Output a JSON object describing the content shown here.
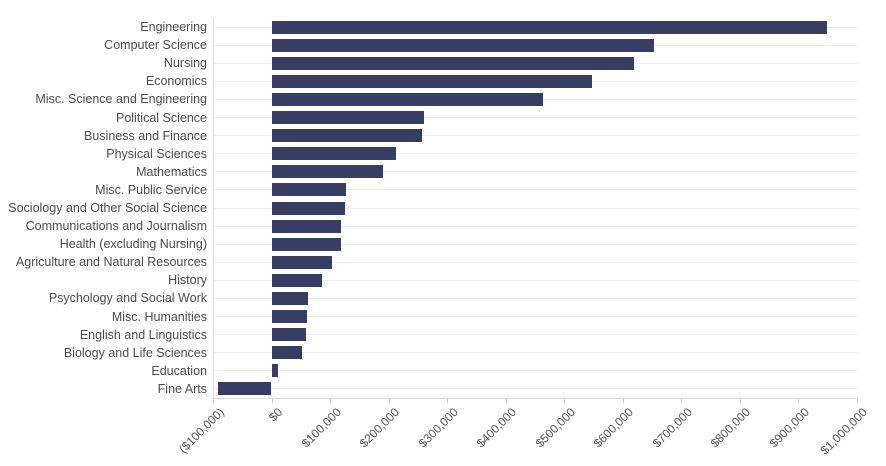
{
  "chart_data": {
    "type": "bar",
    "orientation": "horizontal",
    "title": "",
    "xlabel": "",
    "ylabel": "",
    "xlim": [
      -100000,
      1000000
    ],
    "grid": "horizontal-row-lines",
    "legend": "none",
    "categories": [
      "Engineering",
      "Computer Science",
      "Nursing",
      "Economics",
      "Misc. Science and Engineering",
      "Political Science",
      "Business and Finance",
      "Physical Sciences",
      "Mathematics",
      "Misc. Public Service",
      "Sociology and Other Social Science",
      "Communications and Journalism",
      "Health (excluding Nursing)",
      "Agriculture and Natural Resources",
      "History",
      "Psychology and Social Work",
      "Misc. Humanities",
      "English and Linguistics",
      "Biology and Life Sciences",
      "Education",
      "Fine Arts"
    ],
    "values": [
      950000,
      653000,
      619000,
      548000,
      464000,
      261000,
      257000,
      213000,
      191000,
      127000,
      125000,
      119000,
      118000,
      103000,
      87000,
      62000,
      61000,
      59000,
      52000,
      11000,
      -91000
    ],
    "x_tick_values": [
      -100000,
      0,
      100000,
      200000,
      300000,
      400000,
      500000,
      600000,
      700000,
      800000,
      900000,
      1000000
    ],
    "x_tick_labels": [
      "($100,000)",
      "$0",
      "$100,000",
      "$200,000",
      "$300,000",
      "$400,000",
      "$500,000",
      "$600,000",
      "$700,000",
      "$800,000",
      "$900,000",
      "$1,000,000"
    ],
    "colors": {
      "bar": "#383e63",
      "row_gridline": "#ededed",
      "axis_line": "#d9d9d9",
      "tick_mark": "#c9c9c9",
      "category_text": "#4c4c4c",
      "tick_text": "#555555",
      "background": "#ffffff"
    }
  }
}
